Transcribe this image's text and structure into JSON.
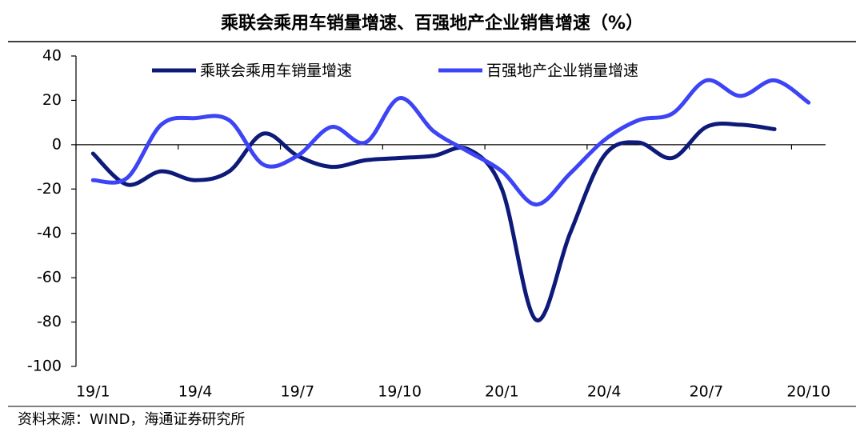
{
  "chart_data": {
    "type": "line",
    "title": "乘联会乘用车销量增速、百强地产企业销售增速（%）",
    "source": "资料来源：WIND，海通证券研究所",
    "categories": [
      "19/1",
      null,
      null,
      "19/4",
      null,
      null,
      "19/7",
      null,
      null,
      "19/10",
      null,
      null,
      "20/1",
      null,
      null,
      "20/4",
      null,
      null,
      "20/7",
      null,
      null,
      "20/10"
    ],
    "series": [
      {
        "name": "乘联会乘用车销量增速",
        "color": "#0d1a7a",
        "values": [
          -4,
          -18,
          -12,
          -16,
          -12,
          5,
          -5,
          -10,
          -7,
          -6,
          -5,
          -2,
          -20,
          -79,
          -40,
          -5,
          1,
          -6,
          8,
          9,
          7,
          null
        ]
      },
      {
        "name": "百强地产企业销量增速",
        "color": "#3d44f5",
        "values": [
          -16,
          -15,
          9,
          12,
          11,
          -9,
          -5,
          8,
          1,
          21,
          6,
          -3,
          -12,
          -27,
          -13,
          2,
          11,
          14,
          29,
          22,
          29,
          19
        ]
      }
    ],
    "ylim": [
      -100,
      40
    ],
    "yticks": [
      -100,
      -80,
      -60,
      -40,
      -20,
      0,
      20,
      40
    ]
  }
}
